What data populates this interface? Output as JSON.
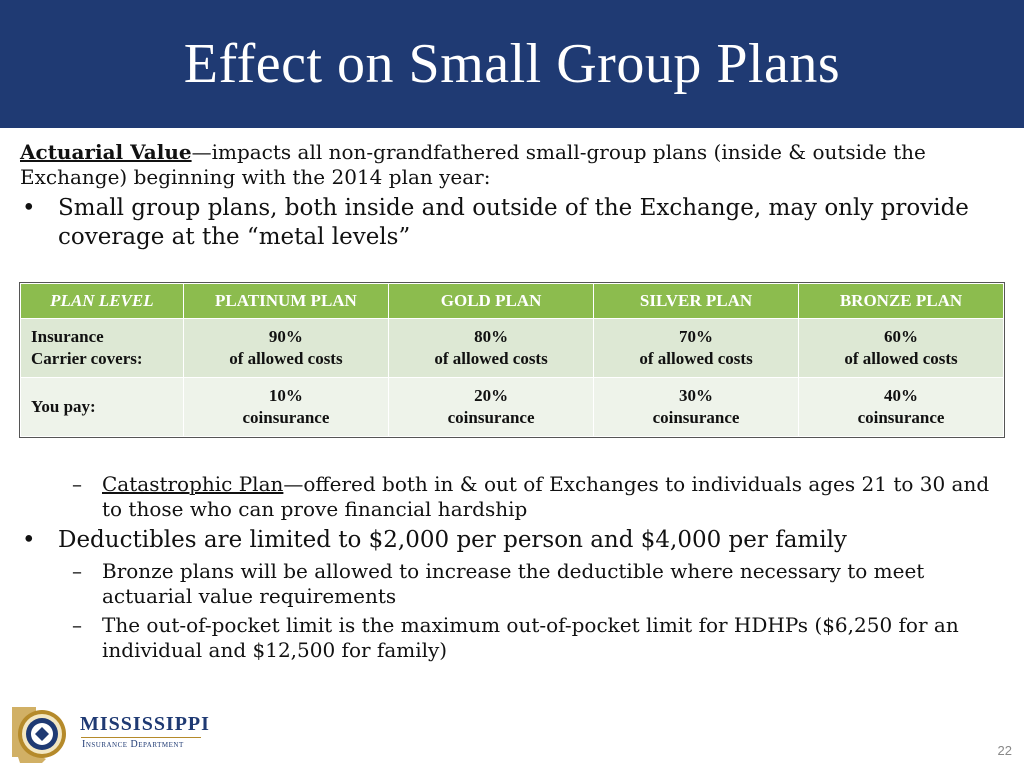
{
  "slide": {
    "title": "Effect on Small Group Plans",
    "page_number": "22"
  },
  "intro": {
    "label": "Actuarial Value",
    "text": "—impacts all non-grandfathered small-group plans (inside & outside the Exchange) beginning with the 2014 plan year:"
  },
  "bullets": {
    "metal_levels": "Small group plans, both inside and outside of the Exchange, may only provide coverage at the “metal levels”",
    "deductibles": "Deductibles are limited to $2,000 per person and $4,000 per family"
  },
  "table": {
    "headers": [
      "PLAN LEVEL",
      "PLATINUM PLAN",
      "GOLD PLAN",
      "SILVER PLAN",
      "BRONZE PLAN"
    ],
    "rows": [
      {
        "label_line1": "Insurance",
        "label_line2": "Carrier covers:",
        "cells": [
          {
            "line1": "90%",
            "line2": "of allowed costs"
          },
          {
            "line1": "80%",
            "line2": "of allowed costs"
          },
          {
            "line1": "70%",
            "line2": "of allowed costs"
          },
          {
            "line1": "60%",
            "line2": "of allowed costs"
          }
        ]
      },
      {
        "label_line1": "You pay:",
        "cells": [
          {
            "line1": "10%",
            "line2": "coinsurance"
          },
          {
            "line1": "20%",
            "line2": "coinsurance"
          },
          {
            "line1": "30%",
            "line2": "coinsurance"
          },
          {
            "line1": "40%",
            "line2": "coinsurance"
          }
        ]
      }
    ],
    "header_color": "#8cbc4e"
  },
  "subs": {
    "catastrophic_label": "Catastrophic Plan",
    "catastrophic_text": "—offered both in & out of Exchanges to individuals ages 21 to 30 and to those who can prove financial hardship",
    "bronze": "Bronze plans will be allowed to increase the deductible where necessary to meet actuarial value requirements",
    "oop": "The out-of-pocket limit is the maximum out-of-pocket limit for HDHPs ($6,250 for an individual and $12,500 for family)"
  },
  "logo": {
    "word1": "MISSISSIPPI",
    "word2": "Insurance Department"
  },
  "colors": {
    "title_bar": "#1f3a73",
    "accent_gold": "#b58a2a"
  }
}
